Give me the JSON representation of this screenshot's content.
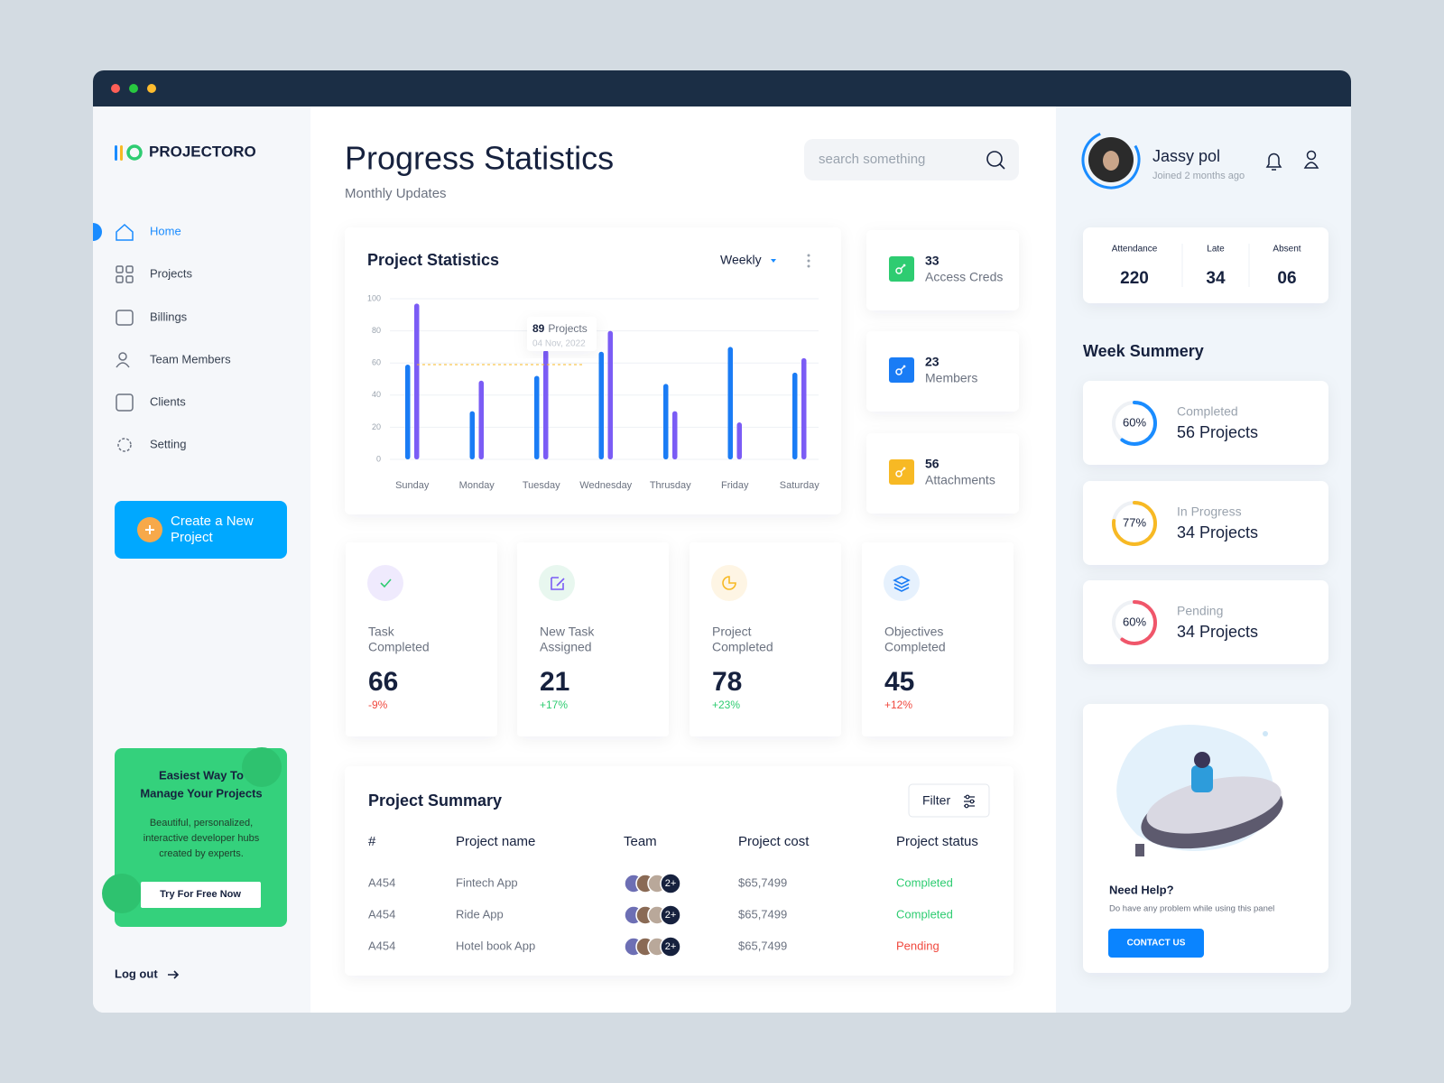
{
  "sidebar": {
    "logo": "PROJECTORO",
    "nav": [
      "Home",
      "Projects",
      "Billings",
      "Team Members",
      "Clients",
      "Setting"
    ],
    "create_button": [
      "Create a New",
      "Project"
    ],
    "promo": {
      "title": [
        "Easiest Way To",
        "Manage Your Projects"
      ],
      "text": [
        "Beautiful, personalized,",
        "interactive developer hubs",
        "created by experts."
      ],
      "button": "Try For Free Now"
    },
    "logout": "Log out"
  },
  "header": {
    "title": "Progress Statistics",
    "subtitle": "Monthly Updates",
    "search_placeholder": "search something"
  },
  "chart_data": {
    "type": "bar",
    "title": "Project Statistics",
    "period": "Weekly",
    "categories": [
      "Sunday",
      "Monday",
      "Tuesday",
      "Wednesday",
      "Thrusday",
      "Friday",
      "Saturday"
    ],
    "series": [
      {
        "color": "#1a7cf5",
        "values": [
          59,
          30,
          52,
          67,
          47,
          70,
          54
        ]
      },
      {
        "color": "#7b5cf5",
        "values": [
          97,
          49,
          68,
          80,
          30,
          23,
          63
        ]
      }
    ],
    "ylim": [
      0,
      100
    ],
    "yticks": [
      0,
      20,
      40,
      60,
      80,
      100
    ],
    "grid": true,
    "tooltip": {
      "value": 89,
      "label": "Projects",
      "date": "04 Nov, 2022"
    }
  },
  "quick_stats": [
    {
      "value": 33,
      "label": "Access Creds",
      "color": "#2ecc71"
    },
    {
      "value": 23,
      "label": "Members",
      "color": "#1a7cf5"
    },
    {
      "value": 56,
      "label": "Attachments",
      "color": "#f7b924"
    }
  ],
  "stat_cards": [
    {
      "label": [
        "Task",
        "Completed"
      ],
      "value": 66,
      "change": "-9%",
      "change_color": "#f0483e"
    },
    {
      "label": [
        "New Task",
        "Assigned"
      ],
      "value": 21,
      "change": "+17%",
      "change_color": "#2ecc71"
    },
    {
      "label": [
        "Project",
        "Completed"
      ],
      "value": 78,
      "change": "+23%",
      "change_color": "#2ecc71"
    },
    {
      "label": [
        "Objectives",
        "Completed"
      ],
      "value": 45,
      "change": "+12%",
      "change_color": "#f0483e"
    }
  ],
  "summary": {
    "title": "Project Summary",
    "filter": "Filter",
    "columns": [
      "#",
      "Project name",
      "Team",
      "Project cost",
      "Project status"
    ],
    "rows": [
      {
        "id": "A454",
        "name": "Fintech App",
        "team": "2+",
        "cost": "$65,7499",
        "status": "Completed",
        "status_color": "#2ecc71"
      },
      {
        "id": "A454",
        "name": "Ride App",
        "team": "2+",
        "cost": "$65,7499",
        "status": "Completed",
        "status_color": "#2ecc71"
      },
      {
        "id": "A454",
        "name": "Hotel book App",
        "team": "2+",
        "cost": "$65,7499",
        "status": "Pending",
        "status_color": "#f0483e"
      }
    ]
  },
  "profile": {
    "name": "Jassy pol",
    "joined": "Joined 2 months ago"
  },
  "attendance": [
    {
      "label": "Attendance",
      "value": 220
    },
    {
      "label": "Late",
      "value": 34
    },
    {
      "label": "Absent",
      "value": "06"
    }
  ],
  "week_summary": {
    "title": "Week Summery",
    "items": [
      {
        "percent": 60,
        "percent_label": "60%",
        "label": "Completed",
        "value": "56 Projects",
        "color": "#1a8cff"
      },
      {
        "percent": 77,
        "percent_label": "77%",
        "label": "In Progress",
        "value": "34 Projects",
        "color": "#f7b924"
      },
      {
        "percent": 60,
        "percent_label": "60%",
        "label": "Pending",
        "value": "34 Projects",
        "color": "#f0566a"
      }
    ]
  },
  "help": {
    "title": "Need Help?",
    "text": "Do have any problem while using this panel",
    "button": "CONTACT US"
  }
}
